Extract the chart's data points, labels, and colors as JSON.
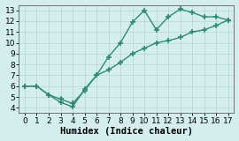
{
  "xlabel": "Humidex (Indice chaleur)",
  "xlim": [
    -0.5,
    17.5
  ],
  "ylim": [
    3.5,
    13.5
  ],
  "xticks": [
    0,
    1,
    2,
    3,
    4,
    5,
    6,
    7,
    8,
    9,
    10,
    11,
    12,
    13,
    14,
    15,
    16,
    17
  ],
  "yticks": [
    4,
    5,
    6,
    7,
    8,
    9,
    10,
    11,
    12,
    13
  ],
  "line1_x": [
    0,
    1,
    2,
    3,
    4,
    5,
    6,
    7,
    8,
    9,
    10,
    11,
    12,
    13,
    14,
    15,
    16,
    17
  ],
  "line1_y": [
    6.0,
    6.0,
    5.2,
    4.5,
    4.1,
    5.7,
    7.0,
    8.7,
    10.0,
    11.9,
    13.0,
    11.2,
    12.4,
    13.1,
    12.8,
    12.4,
    12.4,
    12.1
  ],
  "line2_x": [
    0,
    1,
    2,
    3,
    4,
    5,
    6,
    7,
    8,
    9,
    10,
    11,
    12,
    13,
    14,
    15,
    16,
    17
  ],
  "line2_y": [
    6.0,
    6.0,
    5.2,
    4.8,
    4.4,
    5.6,
    7.0,
    7.5,
    8.2,
    9.0,
    9.5,
    10.0,
    10.2,
    10.5,
    11.0,
    11.2,
    11.6,
    12.1
  ],
  "line_color": "#2e8b70",
  "bg_color": "#d4eeee",
  "grid_color": "#b8d8d8",
  "marker": "+",
  "markersize": 4,
  "markeredgewidth": 1.2,
  "linewidth": 1.0,
  "tick_fontsize": 6.5,
  "label_fontsize": 7.5
}
